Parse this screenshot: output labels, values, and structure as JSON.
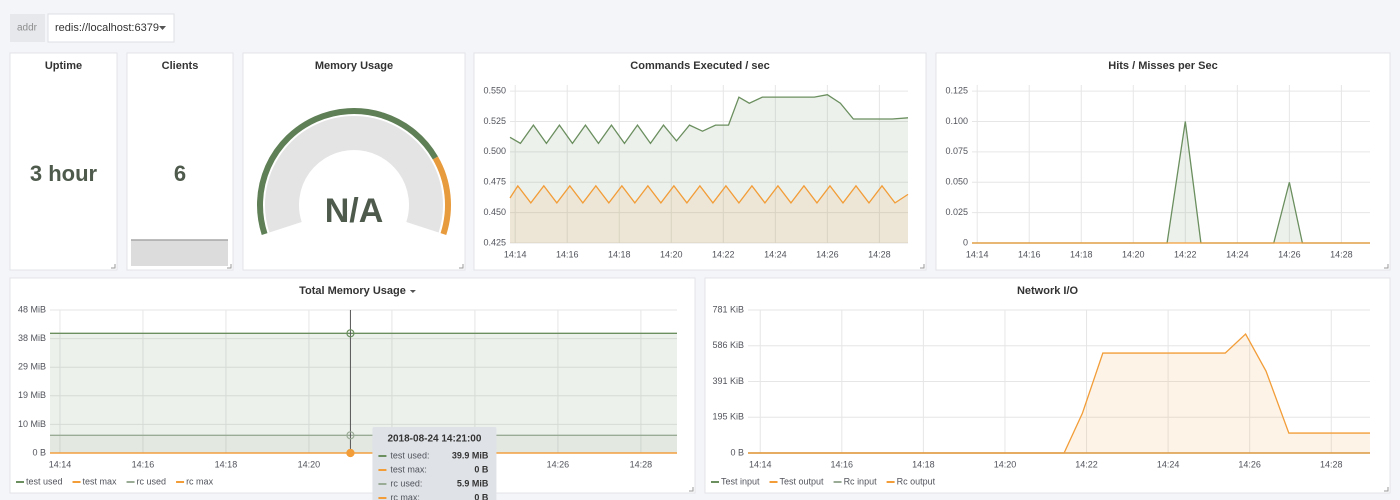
{
  "variables": {
    "label": "addr",
    "value": "redis://localhost:6379"
  },
  "panels": [
    {
      "type": "singlestat",
      "title": "Uptime",
      "value_label": "3 hour"
    },
    {
      "type": "singlestat",
      "title": "Clients",
      "value": 6
    },
    {
      "type": "gauge",
      "title": "Memory Usage",
      "value_label": "N/A"
    },
    {
      "type": "line",
      "title": "Commands Executed / sec",
      "xlim": [
        853.8,
        869.1
      ],
      "xticks": [
        {
          "value": 854,
          "label": "14:14"
        },
        {
          "value": 856,
          "label": "14:16"
        },
        {
          "value": 858,
          "label": "14:18"
        },
        {
          "value": 860,
          "label": "14:20"
        },
        {
          "value": 862,
          "label": "14:22"
        },
        {
          "value": 864,
          "label": "14:24"
        },
        {
          "value": 866,
          "label": "14:26"
        },
        {
          "value": 868,
          "label": "14:28"
        }
      ],
      "ylim": [
        0.425,
        0.555
      ],
      "yticks": [
        0.425,
        {
          "value": 0.45,
          "label": "0.450"
        },
        0.475,
        {
          "value": 0.5,
          "label": "0.500"
        },
        0.525,
        {
          "value": 0.55,
          "label": "0.550"
        }
      ],
      "grid": true,
      "series": [
        {
          "color": "#6b8f5f",
          "fill": true,
          "x": [
            853.8,
            854.2,
            854.7,
            855.2,
            855.7,
            856.2,
            856.7,
            857.2,
            857.7,
            858.2,
            858.7,
            859.2,
            859.7,
            860.2,
            860.7,
            861.2,
            861.7,
            862.2,
            862.6,
            863,
            863.5,
            864,
            864.5,
            865,
            865.5,
            866,
            866.5,
            867,
            867.5,
            868,
            868.5,
            869.1
          ],
          "values": [
            0.512,
            0.507,
            0.522,
            0.507,
            0.522,
            0.507,
            0.522,
            0.507,
            0.522,
            0.507,
            0.522,
            0.507,
            0.522,
            0.509,
            0.522,
            0.517,
            0.522,
            0.522,
            0.545,
            0.54,
            0.545,
            0.545,
            0.545,
            0.545,
            0.545,
            0.547,
            0.54,
            0.527,
            0.527,
            0.527,
            0.527,
            0.528
          ]
        },
        {
          "color": "#f29d38",
          "fill": true,
          "x": [
            853.8,
            854.1,
            854.6,
            855.1,
            855.6,
            856.1,
            856.6,
            857.1,
            857.6,
            858.1,
            858.6,
            859.1,
            859.6,
            860.1,
            860.6,
            861.1,
            861.6,
            862.1,
            862.6,
            863.1,
            863.6,
            864.1,
            864.6,
            865.1,
            865.6,
            866.1,
            866.6,
            867.1,
            867.6,
            868.1,
            868.6,
            869.1
          ],
          "values": [
            0.462,
            0.472,
            0.458,
            0.472,
            0.458,
            0.472,
            0.458,
            0.472,
            0.458,
            0.472,
            0.458,
            0.472,
            0.458,
            0.472,
            0.458,
            0.472,
            0.458,
            0.472,
            0.458,
            0.472,
            0.458,
            0.472,
            0.458,
            0.472,
            0.458,
            0.472,
            0.458,
            0.472,
            0.458,
            0.472,
            0.458,
            0.465
          ]
        }
      ]
    },
    {
      "type": "line",
      "title": "Hits / Misses per Sec",
      "xlim": [
        853.8,
        869.1
      ],
      "xticks": [
        {
          "value": 854,
          "label": "14:14"
        },
        {
          "value": 856,
          "label": "14:16"
        },
        {
          "value": 858,
          "label": "14:18"
        },
        {
          "value": 860,
          "label": "14:20"
        },
        {
          "value": 862,
          "label": "14:22"
        },
        {
          "value": 864,
          "label": "14:24"
        },
        {
          "value": 866,
          "label": "14:26"
        },
        {
          "value": 868,
          "label": "14:28"
        }
      ],
      "ylim": [
        0,
        0.13
      ],
      "yticks": [
        0,
        0.025,
        {
          "value": 0.05,
          "label": "0.050"
        },
        0.075,
        {
          "value": 0.1,
          "label": "0.100"
        },
        0.125
      ],
      "grid": true,
      "series": [
        {
          "color": "#6b8f5f",
          "fill": true,
          "x": [
            853.8,
            861.3,
            862,
            862.6,
            865.4,
            866,
            866.5,
            869.1
          ],
          "values": [
            0,
            0,
            0.1,
            0,
            0,
            0.05,
            0,
            0
          ]
        },
        {
          "color": "#f29d38",
          "fill": false,
          "x": [
            853.8,
            869.1
          ],
          "values": [
            0,
            0
          ]
        }
      ]
    },
    {
      "type": "line",
      "title": "Total Memory Usage",
      "legend": true,
      "xlim": [
        853.76,
        868.87
      ],
      "xticks": [
        {
          "value": 854,
          "label": "14:14"
        },
        {
          "value": 856,
          "label": "14:16"
        },
        {
          "value": 858,
          "label": "14:18"
        },
        {
          "value": 860,
          "label": "14:20"
        },
        {
          "value": 862,
          "label": "14:22"
        },
        {
          "value": 864,
          "label": "14:24"
        },
        {
          "value": 866,
          "label": "14:26"
        },
        {
          "value": 868,
          "label": "14:28"
        }
      ],
      "ylim": [
        0,
        47.68
      ],
      "yticks": [
        {
          "value": 0,
          "label": "0 B"
        },
        {
          "value": 9.54,
          "label": "10 MiB"
        },
        {
          "value": 19.07,
          "label": "19 MiB"
        },
        {
          "value": 28.61,
          "label": "29 MiB"
        },
        {
          "value": 38.15,
          "label": "38 MiB"
        },
        {
          "value": 47.68,
          "label": "48 MiB"
        }
      ],
      "grid": true,
      "crosshair": 861,
      "series": [
        {
          "name": "test used",
          "color": "#6b8f5f",
          "fill": true,
          "x": [
            853.76,
            868.87
          ],
          "values": [
            39.9,
            39.9
          ]
        },
        {
          "name": "test max",
          "color": "#f29d38",
          "fill": false,
          "x": [
            853.76,
            868.87
          ],
          "values": [
            0,
            0
          ]
        },
        {
          "name": "rc used",
          "color": "#9aab96",
          "fill": true,
          "x": [
            853.76,
            868.87
          ],
          "values": [
            5.9,
            5.9
          ]
        },
        {
          "name": "rc max",
          "color": "#f29d38",
          "fill": false,
          "x": [
            853.76,
            868.87
          ],
          "values": [
            0,
            0
          ]
        }
      ],
      "tooltip": {
        "title": "2018-08-24 14:21:00",
        "rows": [
          {
            "name": "test used:",
            "value": "39.9 MiB"
          },
          {
            "name": "test max:",
            "value": "0 B"
          },
          {
            "name": "rc used:",
            "value": "5.9 MiB"
          },
          {
            "name": "rc max:",
            "value": "0 B"
          }
        ]
      }
    },
    {
      "type": "line",
      "title": "Network I/O",
      "legend": true,
      "xlim": [
        853.7,
        868.95
      ],
      "xticks": [
        {
          "value": 854,
          "label": "14:14"
        },
        {
          "value": 856,
          "label": "14:16"
        },
        {
          "value": 858,
          "label": "14:18"
        },
        {
          "value": 860,
          "label": "14:20"
        },
        {
          "value": 862,
          "label": "14:22"
        },
        {
          "value": 864,
          "label": "14:24"
        },
        {
          "value": 866,
          "label": "14:26"
        },
        {
          "value": 868,
          "label": "14:28"
        }
      ],
      "ylim": [
        0,
        781.3
      ],
      "yticks": [
        {
          "value": 0,
          "label": "0 B"
        },
        {
          "value": 195.3,
          "label": "195 KiB"
        },
        {
          "value": 390.6,
          "label": "391 KiB"
        },
        {
          "value": 585.9,
          "label": "586 KiB"
        },
        {
          "value": 781.3,
          "label": "781 KiB"
        }
      ],
      "grid": true,
      "series": [
        {
          "name": "Test input",
          "color": "#6b8f5f",
          "fill": false,
          "x": [
            853.7,
            868.95
          ],
          "values": [
            0,
            0
          ]
        },
        {
          "name": "Test output",
          "color": "#f29d38",
          "fill": true,
          "x": [
            853.7,
            861.45,
            861.9,
            862.4,
            865.4,
            865.9,
            866.4,
            866.96,
            868.95
          ],
          "values": [
            0,
            0,
            218,
            546,
            546,
            650,
            448,
            109,
            109
          ]
        },
        {
          "name": "Rc input",
          "color": "#9aab96",
          "fill": false,
          "x": [
            853.7,
            868.95
          ],
          "values": [
            0,
            0
          ]
        },
        {
          "name": "Rc output",
          "color": "#f29d38",
          "fill": false,
          "x": [
            853.7,
            868.95
          ],
          "values": [
            0,
            0
          ]
        }
      ]
    }
  ]
}
